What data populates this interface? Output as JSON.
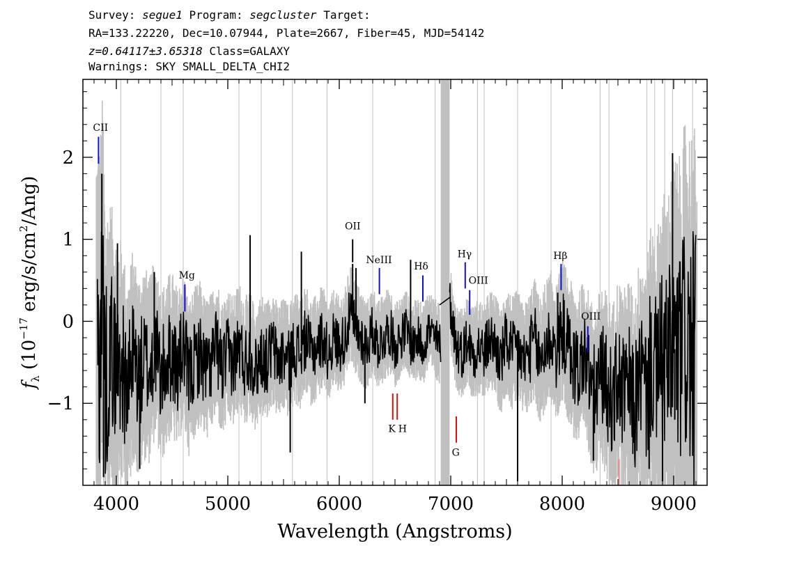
{
  "header": {
    "survey_label": "Survey:",
    "survey": "segue1",
    "program_label": "Program:",
    "program": "segcluster",
    "target_label": "Target:",
    "line2": "RA=133.22220, Dec=10.07944, Plate=2667, Fiber=45, MJD=54142",
    "redshift": "z=0.64117±3.65318",
    "class_text": "Class=GALAXY",
    "warnings": "Warnings: SKY SMALL_DELTA_CHI2"
  },
  "chart_data": {
    "type": "line",
    "xlabel": "Wavelength (Angstroms)",
    "ylabel_main": "(10",
    "ylabel_exp": "−17",
    "ylabel_rest": "erg/s/cm",
    "ylabel_sq": "2",
    "ylabel_end": "/Ang)",
    "ylabel_symbol": "f",
    "ylabel_sub": "λ",
    "xlim": [
      3700,
      9300
    ],
    "ylim": [
      -2.0,
      2.95
    ],
    "x_ticks": [
      4000,
      5000,
      6000,
      7000,
      8000,
      9000
    ],
    "x_tick_labels": [
      "4000",
      "5000",
      "6000",
      "7000",
      "8000",
      "9000"
    ],
    "y_ticks": [
      -1,
      0,
      1,
      2
    ],
    "y_tick_labels": [
      "−1",
      "0",
      "1",
      "2"
    ],
    "masked_region": [
      6910,
      6990
    ],
    "series": [
      {
        "role": "flux",
        "color": "#000000",
        "x": [
          3850,
          3880,
          3900,
          3950,
          4000,
          4050,
          4100,
          4150,
          4200,
          4250,
          4300,
          4350,
          4400,
          4450,
          4500,
          4550,
          4600,
          4650,
          4700,
          4750,
          4800,
          4850,
          4900,
          4950,
          5000,
          5050,
          5100,
          5150,
          5200,
          5250,
          5300,
          5350,
          5400,
          5450,
          5500,
          5550,
          5600,
          5650,
          5700,
          5750,
          5800,
          5850,
          5900,
          5950,
          6000,
          6050,
          6100,
          6150,
          6200,
          6250,
          6300,
          6350,
          6400,
          6450,
          6500,
          6550,
          6600,
          6650,
          6700,
          6750,
          6800,
          6850,
          6900,
          6990,
          7050,
          7100,
          7150,
          7200,
          7250,
          7300,
          7350,
          7400,
          7450,
          7500,
          7550,
          7600,
          7650,
          7700,
          7750,
          7800,
          7850,
          7900,
          7950,
          8000,
          8050,
          8100,
          8150,
          8200,
          8250,
          8300,
          8350,
          8400,
          8450,
          8500,
          8550,
          8600,
          8650,
          8700,
          8750,
          8800,
          8850,
          8900,
          8950,
          9000,
          9050,
          9100,
          9150,
          9200
        ],
        "y": [
          -0.4,
          0.5,
          -0.8,
          -0.3,
          -0.6,
          -0.5,
          -0.9,
          -0.4,
          -0.7,
          -0.5,
          -0.6,
          -0.3,
          -0.7,
          -0.5,
          -0.4,
          -0.6,
          -0.3,
          -0.7,
          -0.5,
          -0.4,
          -0.6,
          -0.5,
          -0.3,
          -0.6,
          -0.4,
          -0.5,
          -0.3,
          -0.5,
          -0.4,
          -0.6,
          -0.4,
          -0.5,
          -0.3,
          -0.5,
          -0.4,
          -0.5,
          -0.3,
          -0.4,
          -0.2,
          -0.4,
          -0.3,
          -0.2,
          -0.4,
          -0.2,
          -0.3,
          -0.2,
          0.1,
          -0.1,
          -0.2,
          -0.3,
          -0.1,
          -0.3,
          -0.2,
          -0.1,
          -0.3,
          -0.2,
          -0.1,
          -0.3,
          -0.2,
          -0.3,
          -0.1,
          -0.2,
          -0.3,
          0.25,
          -0.3,
          -0.4,
          -0.2,
          -0.4,
          -0.3,
          -0.4,
          -0.2,
          -0.3,
          -0.5,
          -0.2,
          -0.4,
          -0.3,
          -0.5,
          -0.4,
          -0.2,
          -0.5,
          -0.3,
          -0.2,
          -0.4,
          -0.1,
          -0.3,
          -0.5,
          -0.6,
          -0.4,
          -0.7,
          -0.9,
          -0.6,
          -0.8,
          -1.0,
          -0.7,
          -0.9,
          -0.8,
          -1.1,
          -0.6,
          -0.9,
          -0.5,
          -0.7,
          -0.4,
          -0.6,
          -0.3,
          -0.5,
          -0.2,
          -0.4,
          -0.6
        ],
        "spikes": [
          {
            "x": 3870,
            "y": 1.8
          },
          {
            "x": 3885,
            "y": -1.9
          },
          {
            "x": 4010,
            "y": 0.95
          },
          {
            "x": 4210,
            "y": -1.8
          },
          {
            "x": 4340,
            "y": 0.6
          },
          {
            "x": 5200,
            "y": 1.05
          },
          {
            "x": 5560,
            "y": -1.6
          },
          {
            "x": 5660,
            "y": 0.85
          },
          {
            "x": 6120,
            "y": 0.7
          },
          {
            "x": 6150,
            "y": 0.65
          },
          {
            "x": 6640,
            "y": 0.75
          },
          {
            "x": 6230,
            "y": -1.0
          },
          {
            "x": 7600,
            "y": -1.95
          },
          {
            "x": 7960,
            "y": 0.35
          },
          {
            "x": 8280,
            "y": -1.7
          },
          {
            "x": 8780,
            "y": -1.8
          },
          {
            "x": 8900,
            "y": -1.95
          },
          {
            "x": 8990,
            "y": 2.05
          },
          {
            "x": 9010,
            "y": -1.2
          },
          {
            "x": 9180,
            "y": 0.3
          }
        ]
      },
      {
        "role": "error",
        "color": "#c0c0c0",
        "x": [
          3750,
          3850,
          3950,
          4050,
          4150,
          4250,
          4350,
          4450,
          4550,
          4650,
          4750,
          4850,
          4950,
          5050,
          5150,
          5250,
          5350,
          5450,
          5550,
          5650,
          5750,
          5850,
          5950,
          6050,
          6150,
          6250,
          6350,
          6450,
          6550,
          6650,
          6750,
          6850,
          7050,
          7150,
          7250,
          7350,
          7450,
          7550,
          7650,
          7750,
          7850,
          7950,
          8050,
          8150,
          8250,
          8350,
          8450,
          8550,
          8650,
          8750,
          8850,
          8950,
          9050,
          9150,
          9200
        ],
        "amp": [
          3.0,
          2.6,
          1.8,
          1.5,
          1.3,
          1.2,
          1.1,
          1.05,
          1.0,
          0.95,
          0.9,
          0.85,
          0.85,
          0.8,
          0.8,
          0.75,
          0.75,
          0.7,
          0.7,
          0.7,
          0.65,
          0.65,
          0.6,
          0.6,
          0.6,
          0.55,
          0.55,
          0.55,
          0.5,
          0.5,
          0.5,
          0.5,
          0.55,
          0.55,
          0.6,
          0.6,
          0.65,
          0.7,
          0.7,
          0.75,
          0.8,
          0.85,
          0.9,
          0.95,
          1.0,
          1.1,
          1.2,
          1.3,
          1.4,
          1.6,
          1.8,
          2.2,
          2.5,
          2.8,
          3.0
        ],
        "spikes": [
          4040,
          4400,
          4600,
          5100,
          5300,
          5580,
          5890,
          6300,
          6860,
          7240,
          7300,
          7600,
          7900,
          8340,
          8420,
          8760,
          8830,
          8920,
          8990,
          9170
        ]
      }
    ],
    "annotations": [
      {
        "label": "CII",
        "x": 3840,
        "color": "blue",
        "y0": 1.92,
        "y1": 2.25,
        "lx": 3790,
        "ly": 2.32
      },
      {
        "label": "Mg",
        "x": 4615,
        "color": "blue",
        "y0": 0.12,
        "y1": 0.45,
        "lx": 4560,
        "ly": 0.52
      },
      {
        "label": "OII",
        "x": 6120,
        "color": "black",
        "y0": 0.72,
        "y1": 1.0,
        "lx": 6050,
        "ly": 1.12
      },
      {
        "label": "NeIII",
        "x": 6360,
        "color": "blue",
        "y0": 0.33,
        "y1": 0.65,
        "lx": 6240,
        "ly": 0.71
      },
      {
        "label": "Hδ",
        "x": 6750,
        "color": "blue",
        "y0": 0.24,
        "y1": 0.56,
        "lx": 6670,
        "ly": 0.63
      },
      {
        "label": "Hγ",
        "x": 7130,
        "color": "blue",
        "y0": 0.4,
        "y1": 0.72,
        "lx": 7060,
        "ly": 0.78
      },
      {
        "label": "OIII",
        "x": 7170,
        "color": "blue",
        "y0": 0.08,
        "y1": 0.38,
        "lx": 7160,
        "ly": 0.46
      },
      {
        "label": "Hβ",
        "x": 7990,
        "color": "blue",
        "y0": 0.38,
        "y1": 0.7,
        "lx": 7920,
        "ly": 0.76
      },
      {
        "label": "OIII",
        "x": 8230,
        "color": "blue",
        "y0": -0.38,
        "y1": -0.06,
        "lx": 8170,
        "ly": 0.02
      },
      {
        "label": "K",
        "x": 6480,
        "color": "red",
        "y0": -1.2,
        "y1": -0.88,
        "lx": 6440,
        "ly": -1.35,
        "nolabel": false
      },
      {
        "label": "H",
        "x": 6520,
        "color": "red",
        "y0": -1.2,
        "y1": -0.88,
        "lx": 6530,
        "ly": -1.35
      },
      {
        "label": "G",
        "x": 7050,
        "color": "red",
        "y0": -1.48,
        "y1": -1.16,
        "lx": 7010,
        "ly": -1.64
      },
      {
        "label": "",
        "x": 8510,
        "color": "salmon",
        "y0": -2.0,
        "y1": -1.68,
        "lx": 8510,
        "ly": -1.68
      }
    ]
  }
}
